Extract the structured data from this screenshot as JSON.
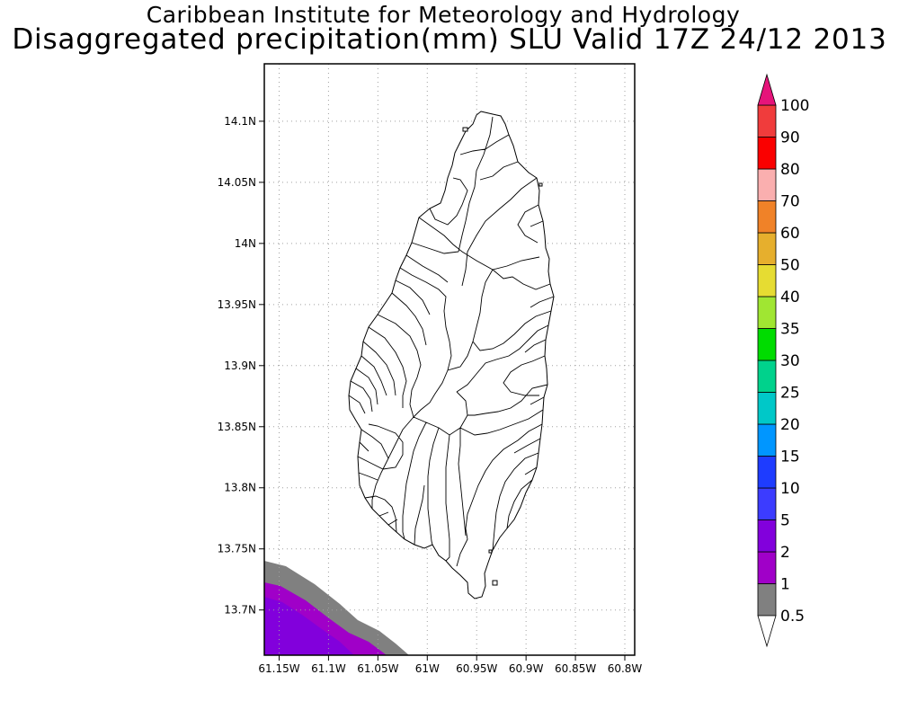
{
  "titles": {
    "line1": "Caribbean Institute for Meteorology and Hydrology",
    "line2": "Disaggregated precipitation(mm) SLU Valid 17Z 24/12 2013"
  },
  "map": {
    "region": "Saint Lucia",
    "lon_range": [
      -61.165,
      -60.79
    ],
    "lat_range": [
      13.663,
      14.147
    ],
    "grid": "dotted",
    "y_ticks": [
      {
        "value": 14.1,
        "label": "14.1N"
      },
      {
        "value": 14.05,
        "label": "14.05N"
      },
      {
        "value": 14.0,
        "label": "14N"
      },
      {
        "value": 13.95,
        "label": "13.95N"
      },
      {
        "value": 13.9,
        "label": "13.9N"
      },
      {
        "value": 13.85,
        "label": "13.85N"
      },
      {
        "value": 13.8,
        "label": "13.8N"
      },
      {
        "value": 13.75,
        "label": "13.75N"
      },
      {
        "value": 13.7,
        "label": "13.7N"
      }
    ],
    "x_ticks": [
      {
        "value": -61.15,
        "label": "61.15W"
      },
      {
        "value": -61.1,
        "label": "61.1W"
      },
      {
        "value": -61.05,
        "label": "61.05W"
      },
      {
        "value": -61.0,
        "label": "61W"
      },
      {
        "value": -60.95,
        "label": "60.95W"
      },
      {
        "value": -60.9,
        "label": "60.9W"
      },
      {
        "value": -60.85,
        "label": "60.85W"
      },
      {
        "value": -60.8,
        "label": "60.8W"
      }
    ],
    "precip_field": [
      {
        "category": "0.5-1",
        "color": "#808080",
        "location": "southwest corner, outer band"
      },
      {
        "category": "1-2",
        "color": "#a000c8",
        "location": "southwest corner, middle band"
      },
      {
        "category": "2-5",
        "color": "#8200dc",
        "location": "southwest corner, core"
      }
    ]
  },
  "colorbar": {
    "levels": [
      {
        "label": "0.5",
        "color": "#ffffff"
      },
      {
        "label": "1",
        "color": "#808080"
      },
      {
        "label": "2",
        "color": "#a000c8"
      },
      {
        "label": "5",
        "color": "#8200dc"
      },
      {
        "label": "10",
        "color": "#3c3cff"
      },
      {
        "label": "15",
        "color": "#1e3cff"
      },
      {
        "label": "20",
        "color": "#0096ff"
      },
      {
        "label": "25",
        "color": "#00c8c8"
      },
      {
        "label": "30",
        "color": "#00d28c"
      },
      {
        "label": "35",
        "color": "#00dc00"
      },
      {
        "label": "40",
        "color": "#a0e632"
      },
      {
        "label": "50",
        "color": "#e6dc32"
      },
      {
        "label": "60",
        "color": "#e6af2d"
      },
      {
        "label": "70",
        "color": "#f08228"
      },
      {
        "label": "80",
        "color": "#faafaf"
      },
      {
        "label": "90",
        "color": "#fa0000"
      },
      {
        "label": "100",
        "color": "#f03c3c"
      }
    ],
    "over_color": "#e6147a"
  }
}
